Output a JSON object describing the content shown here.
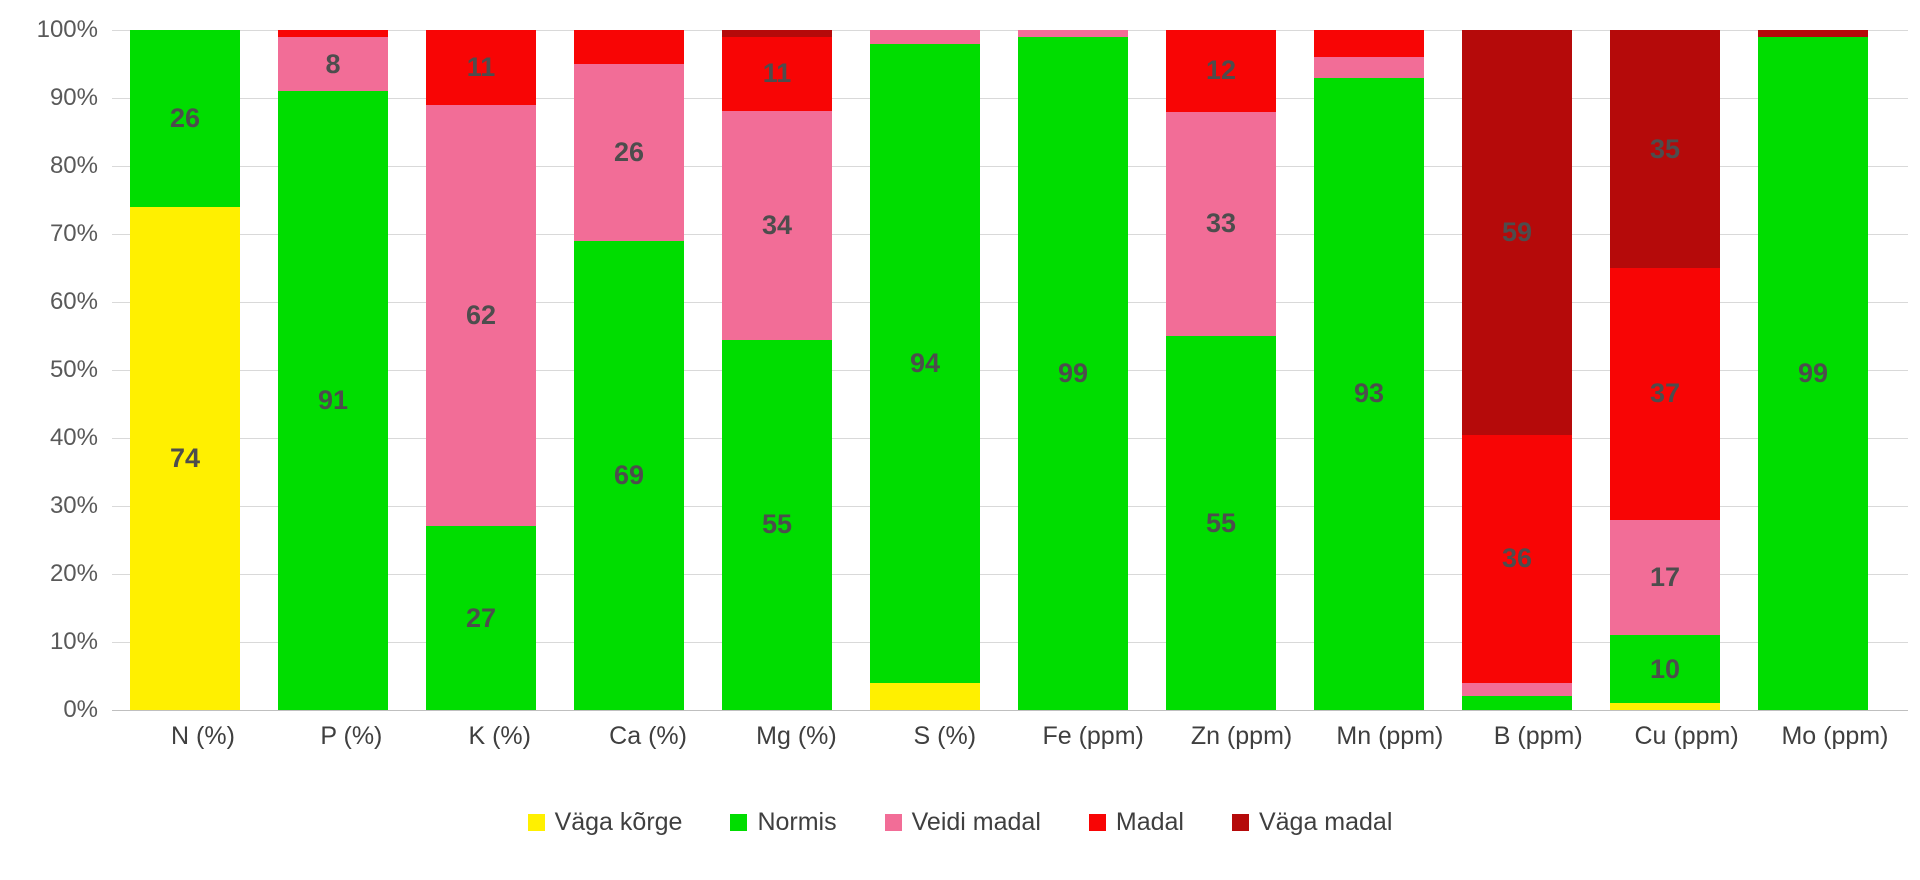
{
  "chart_data": {
    "type": "bar",
    "subtype": "stacked-100-percent",
    "title": "",
    "xlabel": "",
    "ylabel": "",
    "ylim": [
      0,
      100
    ],
    "grid": true,
    "legend_position": "bottom",
    "label_min_value": 8,
    "label_color": "#4d4d4d",
    "y_ticks": [
      "100%",
      "90%",
      "80%",
      "70%",
      "60%",
      "50%",
      "40%",
      "30%",
      "20%",
      "10%",
      "0%"
    ],
    "categories": [
      "N (%)",
      "P (%)",
      "K (%)",
      "Ca (%)",
      "Mg (%)",
      "S (%)",
      "Fe (ppm)",
      "Zn (ppm)",
      "Mn (ppm)",
      "B (ppm)",
      "Cu (ppm)",
      "Mo (ppm)"
    ],
    "series": [
      {
        "name": "Väga kõrge",
        "color": "#FFF000",
        "values": [
          74,
          0,
          0,
          0,
          0,
          4,
          0,
          0,
          0,
          0,
          1,
          0
        ]
      },
      {
        "name": "Normis",
        "color": "#00DD00",
        "values": [
          26,
          91,
          27,
          69,
          55,
          94,
          99,
          55,
          93,
          2,
          10,
          99
        ]
      },
      {
        "name": "Veidi madal",
        "color": "#F26D97",
        "values": [
          0,
          8,
          62,
          26,
          34,
          2,
          1,
          33,
          3,
          2,
          17,
          0
        ]
      },
      {
        "name": "Madal",
        "color": "#F80505",
        "values": [
          0,
          1,
          11,
          5,
          11,
          0,
          0,
          12,
          4,
          36,
          37,
          0
        ]
      },
      {
        "name": "Väga madal",
        "color": "#B50A0A",
        "values": [
          0,
          0,
          0,
          0,
          1,
          0,
          0,
          0,
          0,
          59,
          35,
          1
        ]
      }
    ]
  }
}
